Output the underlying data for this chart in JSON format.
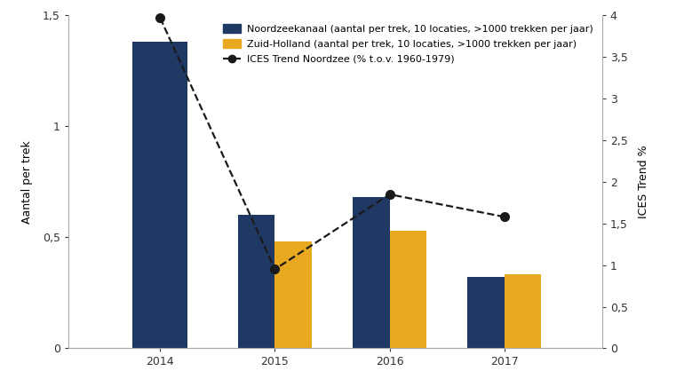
{
  "years": [
    2014,
    2015,
    2016,
    2017
  ],
  "nzk_values": [
    1.38,
    0.6,
    0.68,
    0.32
  ],
  "zh_values": [
    null,
    0.48,
    0.53,
    0.335
  ],
  "ices_years": [
    2014,
    2015,
    2016,
    2017
  ],
  "ices_values": [
    3.97,
    0.95,
    1.85,
    1.58
  ],
  "bar_width": 0.32,
  "nzk_color": "#1F3864",
  "zh_color": "#E8A820",
  "ices_color": "#1a1a1a",
  "ylabel_left": "Aantal per trek",
  "ylabel_right": "ICES Trend %",
  "ylim_left": [
    0,
    1.5
  ],
  "ylim_right": [
    0,
    4.0
  ],
  "yticks_left": [
    0,
    0.5,
    1.0,
    1.5
  ],
  "ytick_labels_left": [
    "0",
    "0,5",
    "1",
    "1,5"
  ],
  "yticks_right": [
    0,
    0.5,
    1.0,
    1.5,
    2.0,
    2.5,
    3.0,
    3.5,
    4.0
  ],
  "ytick_labels_right": [
    "0",
    "0,5",
    "1",
    "1,5",
    "2",
    "2,5",
    "3",
    "3,5",
    "4"
  ],
  "legend_nzk": "Noordzeekanaal (aantal per trek, 10 locaties, >1000 trekken per jaar)",
  "legend_zh": "Zuid-Holland (aantal per trek, 10 locaties, >1000 trekken per jaar)",
  "legend_ices": "ICES Trend Noordzee (% t.o.v. 1960-1979)",
  "background_color": "#ffffff",
  "xlim": [
    2013.2,
    2017.85
  ]
}
